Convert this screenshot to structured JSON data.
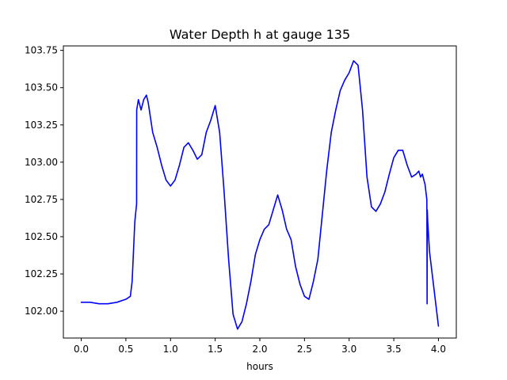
{
  "chart_data": {
    "type": "line",
    "title": "Water Depth h at gauge 135",
    "xlabel": "hours",
    "ylabel": "",
    "xlim": [
      -0.2,
      4.2
    ],
    "ylim": [
      101.82,
      103.78
    ],
    "xticks": [
      0.0,
      0.5,
      1.0,
      1.5,
      2.0,
      2.5,
      3.0,
      3.5,
      4.0
    ],
    "yticks": [
      102.0,
      102.25,
      102.5,
      102.75,
      103.0,
      103.25,
      103.5,
      103.75
    ],
    "xtick_labels": [
      "0.0",
      "0.5",
      "1.0",
      "1.5",
      "2.0",
      "2.5",
      "3.0",
      "3.5",
      "4.0"
    ],
    "ytick_labels": [
      "102.00",
      "102.25",
      "102.50",
      "102.75",
      "103.00",
      "103.25",
      "103.50",
      "103.75"
    ],
    "grid": false,
    "legend": "none",
    "series": [
      {
        "color": "#0000ff",
        "x": [
          0.0,
          0.1,
          0.2,
          0.3,
          0.4,
          0.5,
          0.55,
          0.57,
          0.6,
          0.62,
          0.621,
          0.64,
          0.67,
          0.7,
          0.73,
          0.75,
          0.8,
          0.85,
          0.9,
          0.95,
          1.0,
          1.05,
          1.1,
          1.15,
          1.2,
          1.25,
          1.3,
          1.35,
          1.4,
          1.45,
          1.5,
          1.55,
          1.6,
          1.65,
          1.7,
          1.75,
          1.8,
          1.85,
          1.9,
          1.95,
          2.0,
          2.05,
          2.1,
          2.15,
          2.2,
          2.25,
          2.3,
          2.35,
          2.4,
          2.45,
          2.5,
          2.55,
          2.6,
          2.65,
          2.7,
          2.75,
          2.8,
          2.85,
          2.9,
          2.95,
          3.0,
          3.05,
          3.1,
          3.15,
          3.2,
          3.25,
          3.3,
          3.35,
          3.4,
          3.45,
          3.5,
          3.55,
          3.6,
          3.65,
          3.7,
          3.75,
          3.78,
          3.8,
          3.82,
          3.85,
          3.87,
          3.871,
          3.873,
          3.875,
          3.88,
          3.9,
          3.95,
          4.0
        ],
        "y": [
          102.06,
          102.06,
          102.05,
          102.05,
          102.06,
          102.08,
          102.1,
          102.2,
          102.6,
          102.72,
          103.35,
          103.42,
          103.35,
          103.42,
          103.45,
          103.4,
          103.2,
          103.1,
          102.98,
          102.88,
          102.84,
          102.88,
          102.98,
          103.1,
          103.13,
          103.08,
          103.02,
          103.05,
          103.2,
          103.28,
          103.38,
          103.2,
          102.8,
          102.35,
          101.98,
          101.88,
          101.93,
          102.05,
          102.2,
          102.38,
          102.48,
          102.55,
          102.58,
          102.68,
          102.78,
          102.68,
          102.55,
          102.48,
          102.3,
          102.18,
          102.1,
          102.08,
          102.2,
          102.35,
          102.65,
          102.95,
          103.2,
          103.35,
          103.48,
          103.55,
          103.6,
          103.68,
          103.65,
          103.35,
          102.9,
          102.7,
          102.67,
          102.72,
          102.8,
          102.92,
          103.03,
          103.08,
          103.08,
          102.98,
          102.9,
          102.92,
          102.94,
          102.9,
          102.92,
          102.85,
          102.75,
          102.65,
          102.05,
          102.68,
          102.6,
          102.4,
          102.15,
          101.9
        ]
      }
    ]
  }
}
